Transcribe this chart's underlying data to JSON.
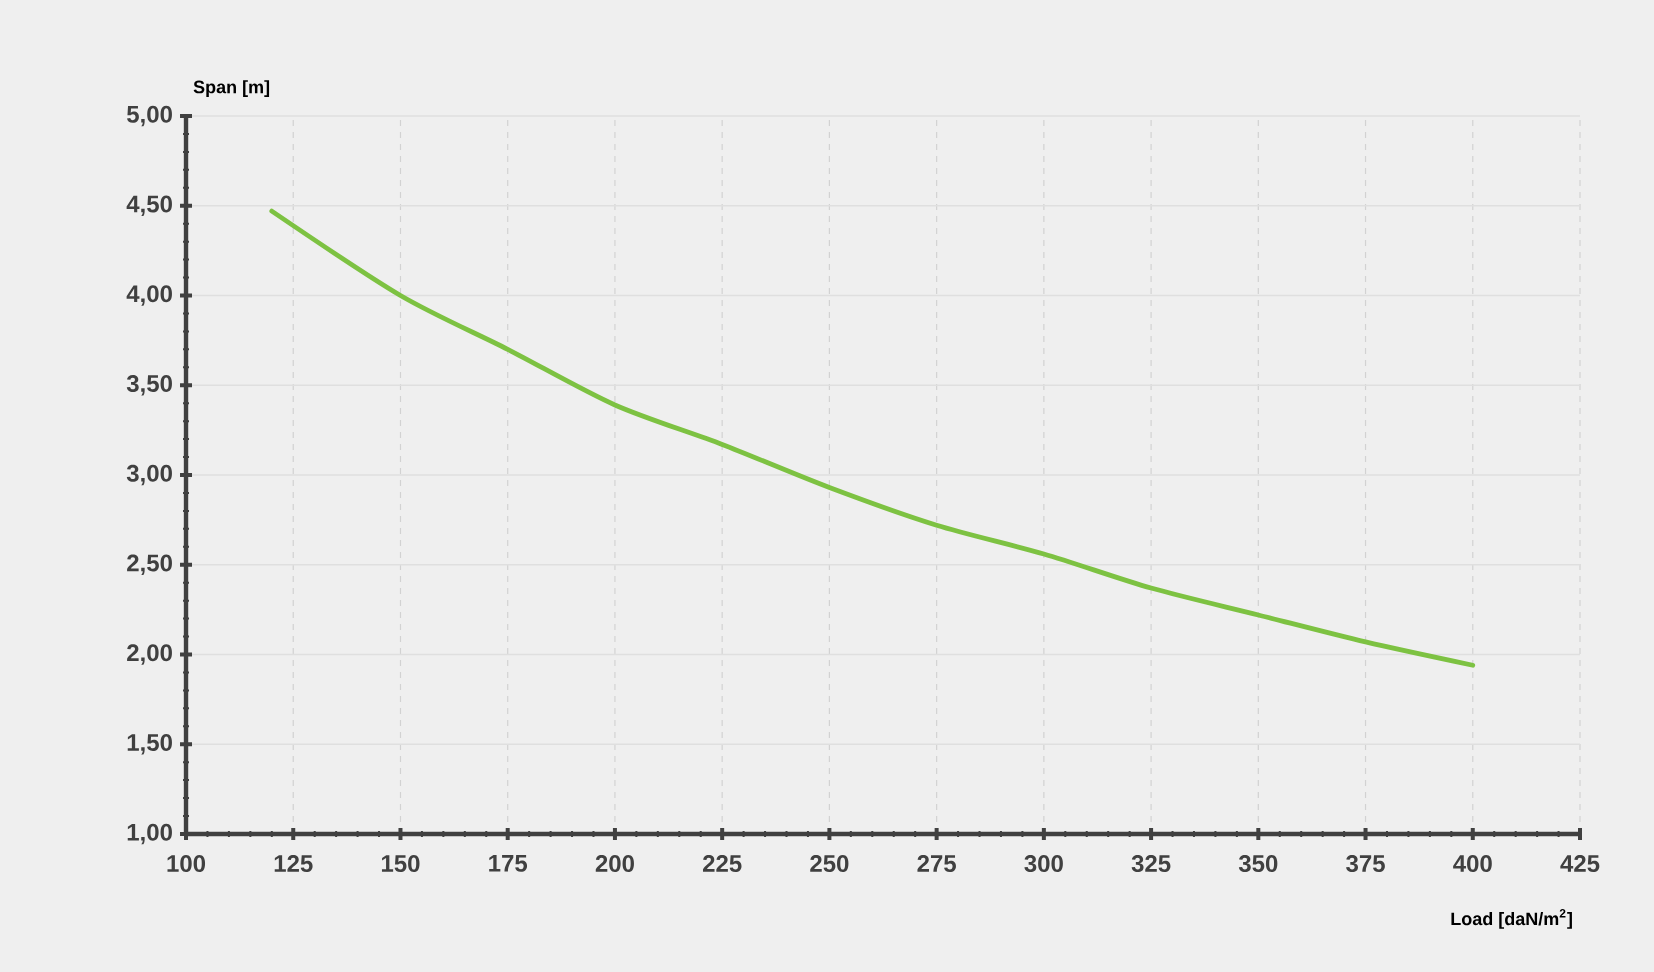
{
  "chart_data": {
    "type": "line",
    "xlabel": "Load [daN/m$^{2}$]",
    "ylabel": "Span [m]",
    "x": [
      120,
      150,
      175,
      200,
      225,
      250,
      275,
      300,
      325,
      350,
      375,
      400
    ],
    "series": [
      {
        "color": "#7dc242",
        "values": [
          4.47,
          4.0,
          3.7,
          3.39,
          3.17,
          2.93,
          2.72,
          2.56,
          2.37,
          2.22,
          2.07,
          1.94
        ]
      }
    ],
    "xlim": [
      100,
      425
    ],
    "xticks": [
      100,
      125,
      150,
      175,
      200,
      225,
      250,
      275,
      300,
      325,
      350,
      375,
      400,
      425
    ],
    "ylim": [
      1,
      5
    ],
    "yticks": [
      {
        "value": 1,
        "label": "1,00"
      },
      {
        "value": 1.5,
        "label": "1,50"
      },
      {
        "value": 2,
        "label": "2,00"
      },
      {
        "value": 2.5,
        "label": "2,50"
      },
      {
        "value": 3,
        "label": "3,00"
      },
      {
        "value": 3.5,
        "label": "3,50"
      },
      {
        "value": 4,
        "label": "4,00"
      },
      {
        "value": 4.5,
        "label": "4,50"
      },
      {
        "value": 5,
        "label": "5,00"
      }
    ],
    "grid": true,
    "marker": "none",
    "line_style": "solid"
  }
}
